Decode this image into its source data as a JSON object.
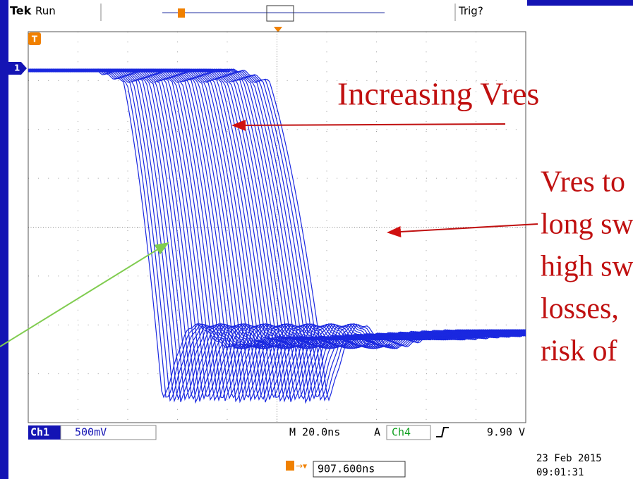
{
  "scope": {
    "brand": "Tek",
    "state": "Run",
    "trigger_state": "Trig?",
    "channel_marker": "1",
    "trigger_marker": "T",
    "channel": "Ch1",
    "volts_per_div": "500mV",
    "timebase": "M 20.0ns",
    "acq": "A",
    "trigger_source": "Ch4",
    "trigger_level": "9.90 V",
    "trigger_position": "907.600ns",
    "date": "23 Feb 2015",
    "time": "09:01:31"
  },
  "annotations": {
    "arrow_label": "Increasing Vres",
    "note_lines": [
      "Vres to",
      "long sw",
      "high sw",
      "losses,",
      "risk of"
    ]
  }
}
